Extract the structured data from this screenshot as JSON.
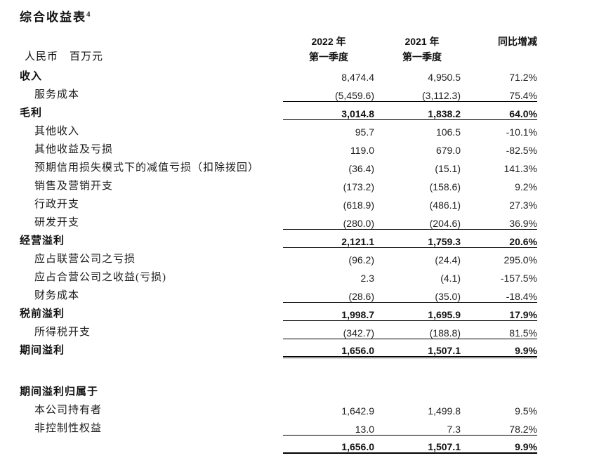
{
  "page": {
    "title": "综合收益表",
    "title_superscript": "4",
    "text_color": "#1a1a1a",
    "rule_color": "#000000"
  },
  "table": {
    "unit_label": "人民币　百万元",
    "columns": [
      {
        "id": "y2022",
        "line1": "2022 年",
        "line2": "第一季度"
      },
      {
        "id": "y2021",
        "line1": "2021 年",
        "line2": "第一季度"
      },
      {
        "id": "yoy",
        "line1": "同比增减",
        "line2": ""
      }
    ],
    "rows": [
      {
        "label": "收入",
        "label_bold": true,
        "v2022": "8,474.4",
        "v2021": "4,950.5",
        "yoy": "71.2%"
      },
      {
        "label": "服务成本",
        "indent": true,
        "v2022": "(5,459.6)",
        "v2021": "(3,112.3)",
        "yoy": "75.4%"
      },
      {
        "label": "毛利",
        "bold": true,
        "rule_top": true,
        "rule_bottom": "single",
        "v2022": "3,014.8",
        "v2021": "1,838.2",
        "yoy": "64.0%"
      },
      {
        "label": "其他收入",
        "indent": true,
        "v2022": "95.7",
        "v2021": "106.5",
        "yoy": "-10.1%"
      },
      {
        "label": "其他收益及亏损",
        "indent": true,
        "v2022": "119.0",
        "v2021": "679.0",
        "yoy": "-82.5%"
      },
      {
        "label": "预期信用损失模式下的减值亏损（扣除拨回）",
        "indent": true,
        "v2022": "(36.4)",
        "v2021": "(15.1)",
        "yoy": "141.3%"
      },
      {
        "label": "销售及营销开支",
        "indent": true,
        "v2022": "(173.2)",
        "v2021": "(158.6)",
        "yoy": "9.2%"
      },
      {
        "label": "行政开支",
        "indent": true,
        "v2022": "(618.9)",
        "v2021": "(486.1)",
        "yoy": "27.3%"
      },
      {
        "label": "研发开支",
        "indent": true,
        "v2022": "(280.0)",
        "v2021": "(204.6)",
        "yoy": "36.9%"
      },
      {
        "label": "经营溢利",
        "bold": true,
        "rule_top": true,
        "rule_bottom": "single",
        "v2022": "2,121.1",
        "v2021": "1,759.3",
        "yoy": "20.6%"
      },
      {
        "label": "应占联营公司之亏损",
        "indent": true,
        "v2022": "(96.2)",
        "v2021": "(24.4)",
        "yoy": "295.0%"
      },
      {
        "label": "应占合营公司之收益(亏损)",
        "indent": true,
        "v2022": "2.3",
        "v2021": "(4.1)",
        "yoy": "-157.5%"
      },
      {
        "label": "财务成本",
        "indent": true,
        "v2022": "(28.6)",
        "v2021": "(35.0)",
        "yoy": "-18.4%"
      },
      {
        "label": "税前溢利",
        "bold": true,
        "rule_top": true,
        "rule_bottom": "single",
        "v2022": "1,998.7",
        "v2021": "1,695.9",
        "yoy": "17.9%"
      },
      {
        "label": "所得税开支",
        "indent": true,
        "v2022": "(342.7)",
        "v2021": "(188.8)",
        "yoy": "81.5%"
      },
      {
        "label": "期间溢利",
        "bold": true,
        "rule_top": true,
        "rule_bottom": "double",
        "v2022": "1,656.0",
        "v2021": "1,507.1",
        "yoy": "9.9%"
      },
      {
        "blank": true
      },
      {
        "label": "期间溢利归属于",
        "bold": true
      },
      {
        "label": "本公司持有者",
        "indent": true,
        "v2022": "1,642.9",
        "v2021": "1,499.8",
        "yoy": "9.5%"
      },
      {
        "label": "非控制性权益",
        "indent": true,
        "v2022": "13.0",
        "v2021": "7.3",
        "yoy": "78.2%"
      },
      {
        "label": "",
        "bold": true,
        "rule_top": true,
        "rule_bottom": "thick",
        "v2022": "1,656.0",
        "v2021": "1,507.1",
        "yoy": "9.9%"
      }
    ]
  }
}
